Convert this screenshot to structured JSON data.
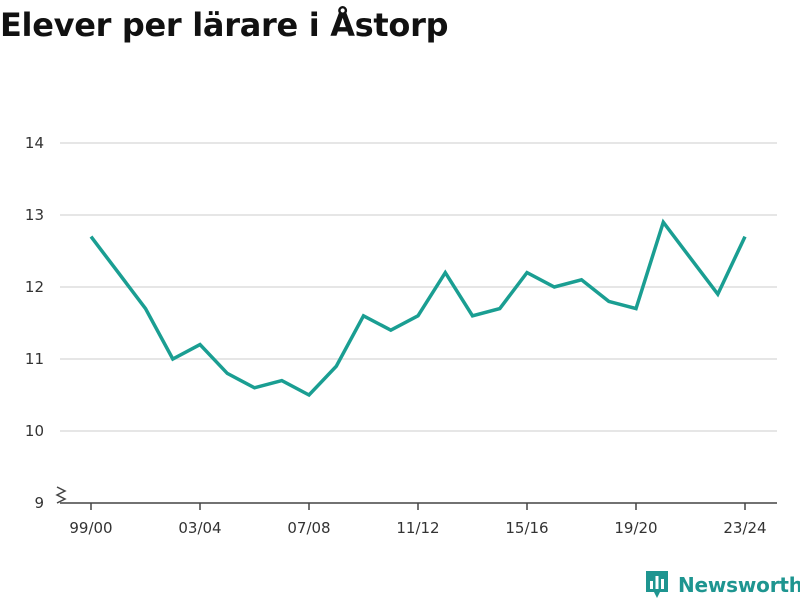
{
  "title": "Elever per lärare i Åstorp",
  "brand": {
    "name": "Newsworthy",
    "color": "#1e9590"
  },
  "chart_data": {
    "type": "line",
    "title": "Elever per lärare i Åstorp",
    "xlabel": "",
    "ylabel": "",
    "x": [
      "99/00",
      "00/01",
      "01/02",
      "02/03",
      "03/04",
      "04/05",
      "05/06",
      "06/07",
      "07/08",
      "08/09",
      "09/10",
      "10/11",
      "11/12",
      "12/13",
      "13/14",
      "14/15",
      "15/16",
      "16/17",
      "17/18",
      "18/19",
      "19/20",
      "20/21",
      "21/22",
      "22/23",
      "23/24"
    ],
    "x_tick_labels": [
      "99/00",
      "03/04",
      "07/08",
      "11/12",
      "15/16",
      "19/20",
      "23/24"
    ],
    "series": [
      {
        "color": "#1a9e92",
        "values": [
          12.7,
          12.2,
          11.7,
          11.0,
          11.2,
          10.8,
          10.6,
          10.7,
          10.5,
          10.9,
          11.6,
          11.4,
          11.6,
          12.2,
          11.6,
          11.7,
          12.2,
          12.0,
          12.1,
          11.8,
          11.7,
          12.9,
          12.4,
          11.9,
          12.7
        ]
      }
    ],
    "y_ticks": [
      9,
      10,
      11,
      12,
      13,
      14
    ],
    "ylim": [
      9,
      14
    ],
    "axis_break": true,
    "grid": true,
    "legend": "none"
  }
}
